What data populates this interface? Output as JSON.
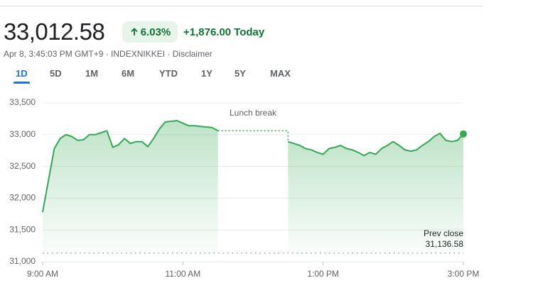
{
  "header": {
    "price": "33,012.58",
    "change_percent": "6.03%",
    "change_abs": "+1,876.00",
    "period": "Today",
    "meta": "Apr 8, 3:45:03 PM GMT+9 · INDEXNIKKEI · Disclaimer"
  },
  "tabs": {
    "items": [
      "1D",
      "5D",
      "1M",
      "6M",
      "YTD",
      "1Y",
      "5Y",
      "MAX"
    ],
    "selected": "1D"
  },
  "chart_data": {
    "type": "line",
    "x": [
      "9:00 AM",
      "9:05 AM",
      "9:10 AM",
      "9:15 AM",
      "9:20 AM",
      "9:25 AM",
      "9:30 AM",
      "9:35 AM",
      "9:40 AM",
      "9:45 AM",
      "9:50 AM",
      "9:55 AM",
      "10:00 AM",
      "10:05 AM",
      "10:10 AM",
      "10:15 AM",
      "10:20 AM",
      "10:25 AM",
      "10:30 AM",
      "10:35 AM",
      "10:40 AM",
      "10:45 AM",
      "10:50 AM",
      "10:55 AM",
      "11:00 AM",
      "11:05 AM",
      "11:10 AM",
      "11:15 AM",
      "11:20 AM",
      "11:25 AM",
      "11:30 AM",
      "12:00 PM",
      "12:30 PM",
      "12:35 PM",
      "12:40 PM",
      "12:45 PM",
      "12:50 PM",
      "12:55 PM",
      "1:00 PM",
      "1:05 PM",
      "1:10 PM",
      "1:15 PM",
      "1:20 PM",
      "1:25 PM",
      "1:30 PM",
      "1:35 PM",
      "1:40 PM",
      "1:45 PM",
      "1:50 PM",
      "1:55 PM",
      "2:00 PM",
      "2:05 PM",
      "2:10 PM",
      "2:15 PM",
      "2:20 PM",
      "2:25 PM",
      "2:30 PM",
      "2:35 PM",
      "2:40 PM",
      "2:45 PM",
      "2:50 PM",
      "2:55 PM",
      "3:00 PM"
    ],
    "series": [
      {
        "name": "INDEXNIKKEI",
        "color": "#34a853",
        "values": [
          31780,
          32280,
          32780,
          32940,
          33000,
          32970,
          32910,
          32920,
          33000,
          33000,
          33030,
          33060,
          32800,
          32840,
          32940,
          32860,
          32890,
          32890,
          32810,
          32940,
          33090,
          33200,
          33210,
          33220,
          33180,
          33140,
          33140,
          33130,
          33120,
          33110,
          33060,
          null,
          32890,
          32860,
          32830,
          32780,
          32760,
          32720,
          32690,
          32780,
          32800,
          32830,
          32780,
          32760,
          32720,
          32670,
          32720,
          32690,
          32780,
          32830,
          32890,
          32830,
          32760,
          32740,
          32760,
          32830,
          32890,
          32970,
          33020,
          32910,
          32890,
          32910,
          33010
        ]
      }
    ],
    "xlim": [
      "9:00 AM",
      "3:00 PM"
    ],
    "xticks": [
      "9:00 AM",
      "11:00 AM",
      "1:00 PM",
      "3:00 PM"
    ],
    "ylim": [
      31000,
      33500
    ],
    "yticks": [
      {
        "value": 31000,
        "label": "31,000"
      },
      {
        "value": 31500,
        "label": "31,500"
      },
      {
        "value": 32000,
        "label": "32,000"
      },
      {
        "value": 32500,
        "label": "32,500"
      },
      {
        "value": 33000,
        "label": "33,000"
      },
      {
        "value": 33500,
        "label": "33,500"
      }
    ],
    "grid": true,
    "annotation": "Lunch break",
    "prev_close": {
      "title": "Prev close",
      "value": 31136.58,
      "label": "31,136.58"
    }
  }
}
